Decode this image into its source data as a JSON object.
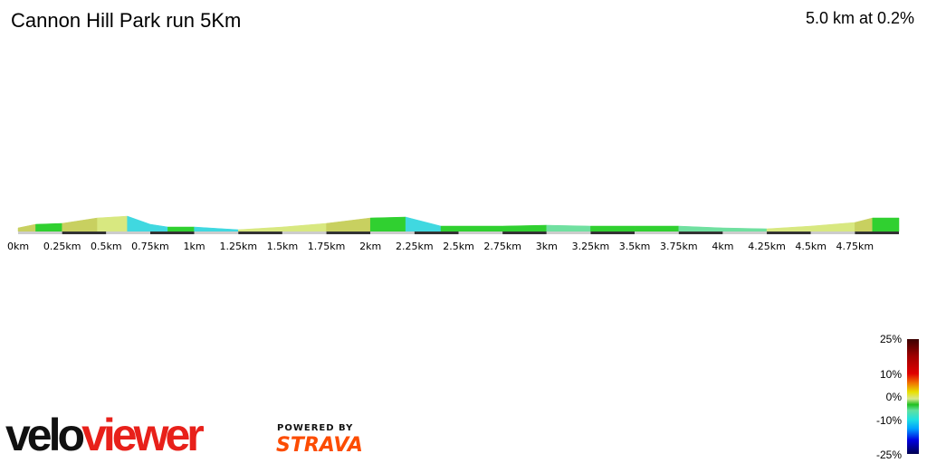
{
  "header": {
    "title": "Cannon Hill Park run 5Km",
    "summary": "5.0 km at 0.2%"
  },
  "chart_data": {
    "type": "area",
    "title": "Cannon Hill Park run 5Km",
    "xlabel": "",
    "ylabel": "",
    "xlim": [
      0,
      5
    ],
    "x_tick_labels": [
      "0km",
      "0.25km",
      "0.5km",
      "0.75km",
      "1km",
      "1.25km",
      "1.5km",
      "1.75km",
      "2km",
      "2.25km",
      "2.5km",
      "2.75km",
      "3km",
      "3.25km",
      "3.5km",
      "3.75km",
      "4km",
      "4.25km",
      "4.5km",
      "4.75km"
    ],
    "x": [
      0,
      0.1,
      0.25,
      0.45,
      0.62,
      0.75,
      0.85,
      1.0,
      1.25,
      1.5,
      1.75,
      2.0,
      2.2,
      2.4,
      2.75,
      3.0,
      3.25,
      3.5,
      3.75,
      4.0,
      4.25,
      4.5,
      4.75,
      4.85,
      5.0
    ],
    "elevation_relative": [
      4,
      8,
      9,
      15,
      17,
      8,
      5,
      5,
      2,
      5,
      9,
      15,
      16,
      6,
      6,
      7,
      6,
      6,
      6,
      4,
      3,
      6,
      10,
      15,
      15
    ],
    "color_scale": {
      "labels": [
        "25%",
        "10%",
        "0%",
        "-10%",
        "-25%"
      ],
      "range": [
        -25,
        25
      ]
    }
  },
  "branding": {
    "logo_part1": "velo",
    "logo_part2": "viewer",
    "powered_by": "POWERED BY",
    "strava": "STRAVA"
  }
}
